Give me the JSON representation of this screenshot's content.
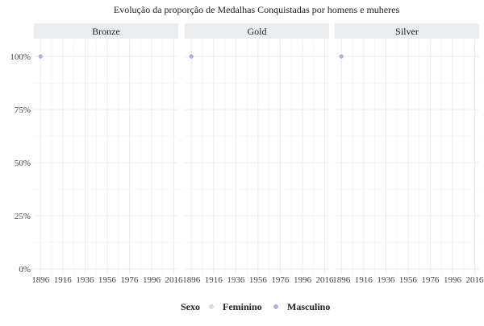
{
  "chart_data": {
    "type": "scatter",
    "title": "Evolução da proporção de Medalhas Conquistadas por homens e muheres",
    "facets": [
      "Bronze",
      "Gold",
      "Silver"
    ],
    "x_ticks": [
      1896,
      1916,
      1936,
      1956,
      1976,
      1996,
      2016
    ],
    "y_ticks": [
      0,
      25,
      50,
      75,
      100
    ],
    "y_tick_labels": [
      "0%",
      "25%",
      "50%",
      "75%",
      "100%"
    ],
    "xlim": [
      1890,
      2020
    ],
    "ylim": [
      -3,
      108
    ],
    "grid": true,
    "legend": {
      "position": "bottom",
      "title": "Sexo",
      "entries": [
        "Feminino",
        "Masculino"
      ]
    },
    "colors": {
      "Feminino": "#cfe0e8",
      "Masculino": "#c6a6e6",
      "panel_strip": "#e9edf0",
      "grid": "#ebebeb"
    },
    "series": [
      {
        "name": "Feminino",
        "points": []
      },
      {
        "name": "Masculino",
        "points": [
          {
            "facet": "Bronze",
            "x": 1896,
            "y": 100
          },
          {
            "facet": "Gold",
            "x": 1896,
            "y": 100
          },
          {
            "facet": "Silver",
            "x": 1896,
            "y": 100
          }
        ]
      }
    ]
  }
}
